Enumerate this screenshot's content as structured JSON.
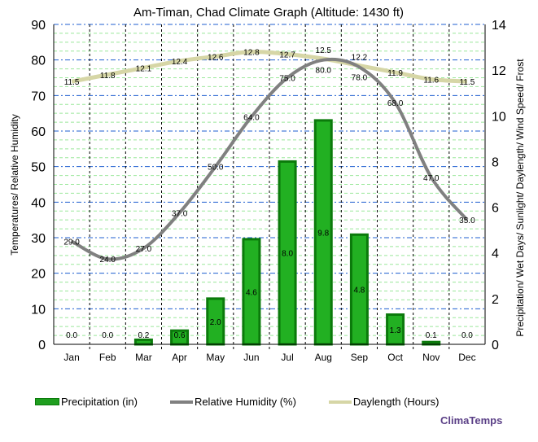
{
  "chart_data": {
    "type": "bar",
    "title": "Am-Timan, Chad Climate Graph (Altitude: 1430 ft)",
    "ylabel_left": "Temperatures/ Relative Humidity",
    "ylabel_right": "Precipitation/ Wet Days/ Sunlight/ Daylength/ Wind Speed/ Frost",
    "ylim_left": [
      0,
      90
    ],
    "ylim_right": [
      0,
      14
    ],
    "yticks_left": [
      0,
      10,
      20,
      30,
      40,
      50,
      60,
      70,
      80,
      90
    ],
    "yticks_right": [
      0,
      2,
      4,
      6,
      8,
      10,
      12,
      14
    ],
    "categories": [
      "Jan",
      "Feb",
      "Mar",
      "Apr",
      "May",
      "Jun",
      "Jul",
      "Aug",
      "Sep",
      "Oct",
      "Nov",
      "Dec"
    ],
    "grid": true,
    "legend_position": "bottom",
    "series": [
      {
        "name": "Precipitation (in)",
        "type": "bar",
        "axis": "right",
        "color": "#1f9e1f",
        "values": [
          0.0,
          0.0,
          0.2,
          0.6,
          2.0,
          4.6,
          8.0,
          9.8,
          4.8,
          1.3,
          0.1,
          0.0
        ]
      },
      {
        "name": "Relative Humidity (%)",
        "type": "line",
        "axis": "left",
        "color": "#808080",
        "values": [
          29.0,
          24.0,
          27.0,
          37.0,
          50.0,
          64.0,
          75.0,
          80.0,
          78.0,
          68.0,
          47.0,
          35.0
        ]
      },
      {
        "name": "Daylength (Hours)",
        "type": "line",
        "axis": "right",
        "color": "#d6d6a6",
        "values": [
          11.5,
          11.8,
          12.1,
          12.4,
          12.6,
          12.8,
          12.7,
          12.5,
          12.2,
          11.9,
          11.6,
          11.5
        ]
      }
    ]
  },
  "brand": "ClimaTemps"
}
